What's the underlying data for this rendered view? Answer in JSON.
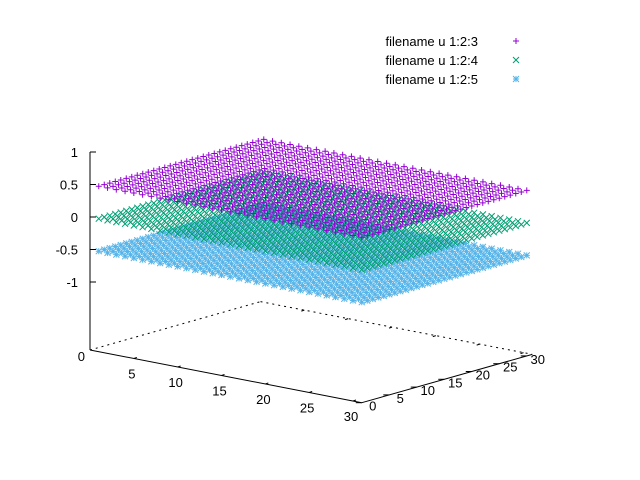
{
  "chart_data": {
    "type": "scatter",
    "title": "",
    "xlabel": "",
    "ylabel": "",
    "zlabel": "",
    "grid": false,
    "legend_position": "top-right",
    "x_ticks": [
      "5",
      "10",
      "15",
      "20",
      "25",
      "30"
    ],
    "y_ticks": [
      "0",
      "5",
      "10",
      "15",
      "20",
      "25",
      "30"
    ],
    "z_ticks": [
      "1",
      "0.5",
      "0",
      "-0.5",
      "-1"
    ],
    "base_corner_label": "0",
    "xlim": [
      1,
      31
    ],
    "ylim": [
      0,
      31
    ],
    "zlim": [
      -1,
      1
    ],
    "grid_points_per_axis": 31,
    "series": [
      {
        "name": "filename u 1:2:3",
        "marker": "plus",
        "color": "#9400d3",
        "surface": "bump",
        "z_base": 0.5,
        "bump_amp": 0.5
      },
      {
        "name": "filename u 1:2:4",
        "marker": "cross",
        "color": "#009e73",
        "surface": "dip",
        "z_base": 0.0,
        "dip_amp": 0.5
      },
      {
        "name": "filename u 1:2:5",
        "marker": "star",
        "color": "#56b4e9",
        "surface": "plane",
        "z_base": -0.5
      }
    ]
  }
}
